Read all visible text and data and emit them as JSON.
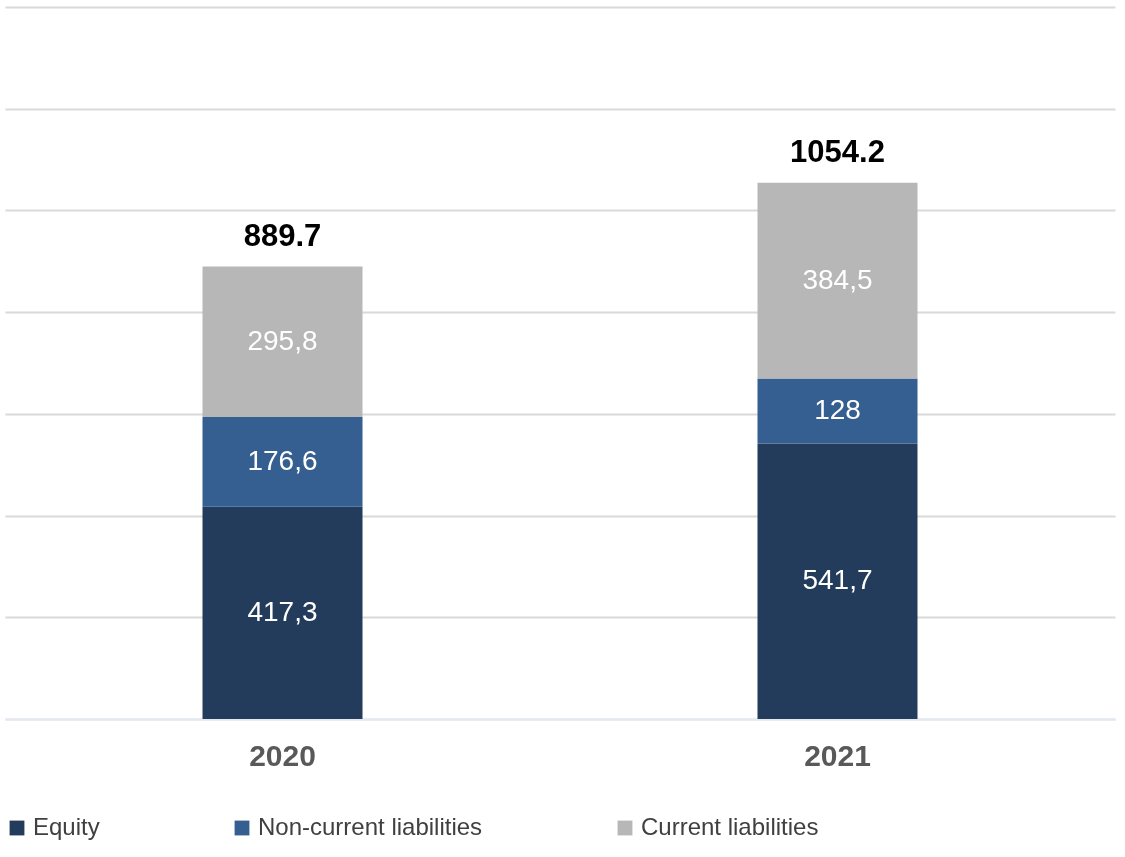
{
  "chart_data": {
    "type": "bar",
    "stacked": true,
    "categories": [
      "2020",
      "2021"
    ],
    "series": [
      {
        "name": "Equity",
        "color": "#243c5c",
        "values": [
          417.3,
          541.7
        ],
        "value_labels": [
          "417,3",
          "541,7"
        ]
      },
      {
        "name": "Non-current liabilities",
        "color": "#355f91",
        "values": [
          176.6,
          128
        ],
        "value_labels": [
          "176,6",
          "128"
        ]
      },
      {
        "name": "Current liabilities",
        "color": "#b7b7b7",
        "values": [
          295.8,
          384.5
        ],
        "value_labels": [
          "295,8",
          "384,5"
        ]
      }
    ],
    "totals": [
      "889.7",
      "1054.2"
    ],
    "ylim": [
      0,
      1400
    ],
    "yticks": [
      0,
      200,
      400,
      600,
      800,
      1000,
      1200,
      1400
    ],
    "grid": "y",
    "tick_labels": "x",
    "legend": "bottom"
  }
}
